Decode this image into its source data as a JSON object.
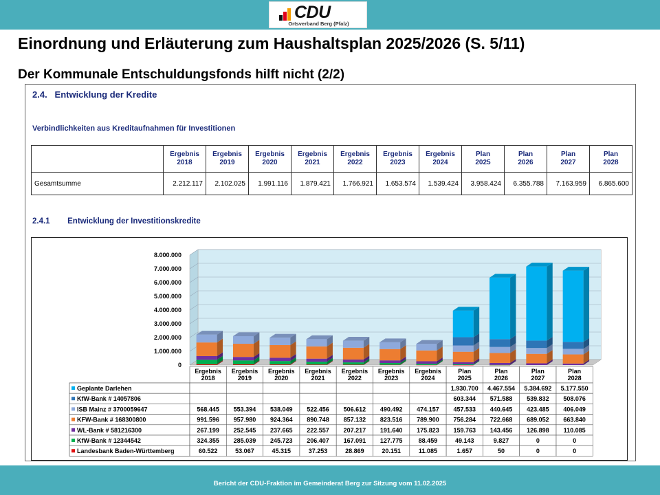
{
  "colors": {
    "accent_bar": "#4aaebb",
    "heading_blue": "#1a2a7a",
    "series": [
      "#00b0f0",
      "#2e75b6",
      "#8ea9db",
      "#ed7d31",
      "#7030a0",
      "#00b050",
      "#e01010"
    ]
  },
  "logo": {
    "word": "CDU",
    "sub": "Ortsverband Berg (Pfalz)"
  },
  "page_title": "Einordnung und Erläuterung zum Haushaltsplan 2025/2026 (S. 5/11)",
  "page_subtitle": "Der Kommunale Entschuldungsfonds hilft nicht (2/2)",
  "document": {
    "section_title": "2.4.   Entwicklung der Kredite",
    "table_caption": "Verbindlichkeiten aus Kreditaufnahmen für Investitionen",
    "table": {
      "headers": [
        "Ergebnis 2018",
        "Ergebnis 2019",
        "Ergebnis 2020",
        "Ergebnis 2021",
        "Ergebnis 2022",
        "Ergebnis 2023",
        "Ergebnis 2024",
        "Plan 2025",
        "Plan 2026",
        "Plan 2027",
        "Plan 2028"
      ],
      "row_label": "Gesamtsumme",
      "values": [
        "2.212.117",
        "2.102.025",
        "1.991.116",
        "1.879.421",
        "1.766.921",
        "1.653.574",
        "1.539.424",
        "3.958.424",
        "6.355.788",
        "7.163.959",
        "6.865.600"
      ]
    },
    "subsection_title": "2.4.1        Entwicklung der Investitionskredite"
  },
  "chart_data": {
    "type": "bar",
    "stacked": true,
    "categories": [
      "Ergebnis 2018",
      "Ergebnis 2019",
      "Ergebnis 2020",
      "Ergebnis 2021",
      "Ergebnis 2022",
      "Ergebnis 2023",
      "Ergebnis 2024",
      "Plan 2025",
      "Plan 2026",
      "Plan 2027",
      "Plan 2028"
    ],
    "y_ticks": [
      "0",
      "1.000.000",
      "2.000.000",
      "3.000.000",
      "4.000.000",
      "5.000.000",
      "6.000.000",
      "7.000.000",
      "8.000.000"
    ],
    "ylim": [
      0,
      8000000
    ],
    "legend_placement": "data-table-below",
    "series": [
      {
        "name": "Geplante Darlehen",
        "color": "#00b0f0",
        "values": [
          0,
          0,
          0,
          0,
          0,
          0,
          0,
          1930700,
          4467554,
          5384692,
          5177550
        ],
        "labels": [
          "",
          "",
          "",
          "",
          "",
          "",
          "",
          "1.930.700",
          "4.467.554",
          "5.384.692",
          "5.177.550"
        ]
      },
      {
        "name": "KfW-Bank # 14057806",
        "color": "#2e75b6",
        "values": [
          0,
          0,
          0,
          0,
          0,
          0,
          0,
          603344,
          571588,
          539832,
          508076
        ],
        "labels": [
          "",
          "",
          "",
          "",
          "",
          "",
          "",
          "603.344",
          "571.588",
          "539.832",
          "508.076"
        ]
      },
      {
        "name": "ISB Mainz # 3700059647",
        "color": "#8ea9db",
        "values": [
          568445,
          553394,
          538049,
          522456,
          506612,
          490492,
          474157,
          457533,
          440645,
          423485,
          406049
        ],
        "labels": [
          "568.445",
          "553.394",
          "538.049",
          "522.456",
          "506.612",
          "490.492",
          "474.157",
          "457.533",
          "440.645",
          "423.485",
          "406.049"
        ]
      },
      {
        "name": "KFW-Bank # 168300800",
        "color": "#ed7d31",
        "values": [
          991596,
          957980,
          924364,
          890748,
          857132,
          823516,
          789900,
          756284,
          722668,
          689052,
          663840
        ],
        "labels": [
          "991.596",
          "957.980",
          "924.364",
          "890.748",
          "857.132",
          "823.516",
          "789.900",
          "756.284",
          "722.668",
          "689.052",
          "663.840"
        ]
      },
      {
        "name": "WL-Bank # 581216300",
        "color": "#7030a0",
        "values": [
          267199,
          252545,
          237665,
          222557,
          207217,
          191640,
          175823,
          159763,
          143456,
          126898,
          110085
        ],
        "labels": [
          "267.199",
          "252.545",
          "237.665",
          "222.557",
          "207.217",
          "191.640",
          "175.823",
          "159.763",
          "143.456",
          "126.898",
          "110.085"
        ]
      },
      {
        "name": "KfW-Bank # 12344542",
        "color": "#00b050",
        "values": [
          324355,
          285039,
          245723,
          206407,
          167091,
          127775,
          88459,
          49143,
          9827,
          0,
          0
        ],
        "labels": [
          "324.355",
          "285.039",
          "245.723",
          "206.407",
          "167.091",
          "127.775",
          "88.459",
          "49.143",
          "9.827",
          "0",
          "0"
        ]
      },
      {
        "name": "Landesbank Baden-Württemberg",
        "color": "#e01010",
        "values": [
          60522,
          53067,
          45315,
          37253,
          28869,
          20151,
          11085,
          1657,
          50,
          0,
          0
        ],
        "labels": [
          "60.522",
          "53.067",
          "45.315",
          "37.253",
          "28.869",
          "20.151",
          "11.085",
          "1.657",
          "50",
          "0",
          "0"
        ]
      }
    ]
  },
  "footer": "Bericht der CDU-Fraktion im Gemeinderat Berg zur Sitzung vom 11.02.2025"
}
